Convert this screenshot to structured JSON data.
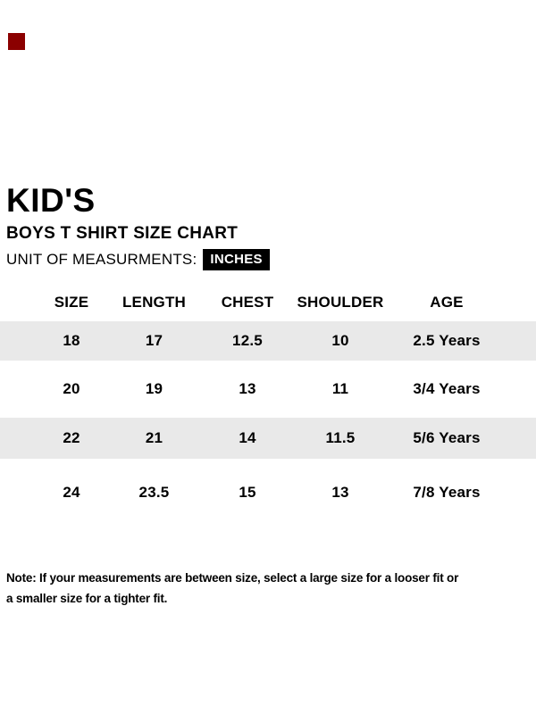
{
  "corner_marker": {
    "color": "#8b0000"
  },
  "header": {
    "title": "KID'S",
    "subtitle": "BOYS T SHIRT SIZE CHART",
    "unit_label": "UNIT OF MEASURMENTS:",
    "unit_value": "INCHES",
    "unit_badge_bg": "#000000",
    "unit_badge_text_color": "#ffffff"
  },
  "size_chart": {
    "columns": [
      "SIZE",
      "LENGTH",
      "CHEST",
      "SHOULDER",
      "AGE"
    ],
    "rows": [
      [
        "18",
        "17",
        "12.5",
        "10",
        "2.5 Years"
      ],
      [
        "20",
        "19",
        "13",
        "11",
        "3/4 Years"
      ],
      [
        "22",
        "21",
        "14",
        "11.5",
        "5/6 Years"
      ],
      [
        "24",
        "23.5",
        "15",
        "13",
        "7/8 Years"
      ]
    ],
    "stripe_color": "#e9e9e9",
    "text_color": "#000000"
  },
  "note": {
    "line1": "Note: If your measurements are between size, select a large size for a looser fit or",
    "line2": "a smaller size for a tighter fit."
  }
}
